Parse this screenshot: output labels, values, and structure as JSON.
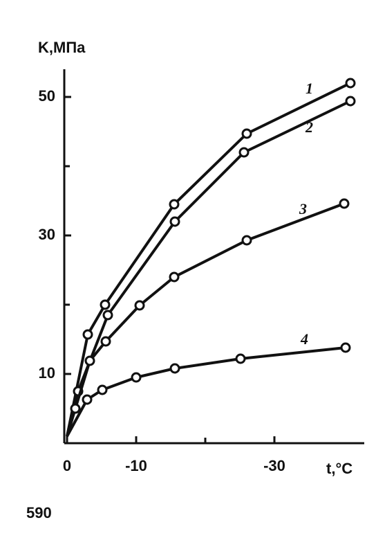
{
  "chart_data": {
    "type": "line",
    "y_label": "K,МПа",
    "x_label": "t,°C",
    "page_number": "590",
    "xlim": [
      0,
      -43
    ],
    "ylim": [
      0,
      54
    ],
    "xticks": [
      0,
      -10,
      -30
    ],
    "x_minor_ticks": [
      -20
    ],
    "yticks": [
      10,
      30,
      50
    ],
    "y_minor_ticks": [
      20,
      40
    ],
    "color": "#111111",
    "series": [
      {
        "name": "1",
        "x": [
          0,
          -3,
          -5.5,
          -15.5,
          -26,
          -41
        ],
        "values": [
          1,
          15.7,
          20,
          34.5,
          44.7,
          52
        ]
      },
      {
        "name": "2",
        "x": [
          0,
          -1.6,
          -5.9,
          -15.6,
          -25.6,
          -41
        ],
        "values": [
          1,
          7.5,
          18.5,
          32,
          42,
          49.4
        ]
      },
      {
        "name": "3",
        "x": [
          0,
          -1.2,
          -3.3,
          -5.6,
          -10.5,
          -15.5,
          -26,
          -40.1
        ],
        "values": [
          1,
          5,
          11.9,
          14.7,
          19.9,
          24,
          29.3,
          34.6
        ]
      },
      {
        "name": "4",
        "x": [
          0,
          -2.9,
          -5.1,
          -10,
          -15.6,
          -25.1,
          -40.3
        ],
        "values": [
          1,
          6.3,
          7.7,
          9.5,
          10.8,
          12.2,
          13.8
        ]
      }
    ]
  }
}
